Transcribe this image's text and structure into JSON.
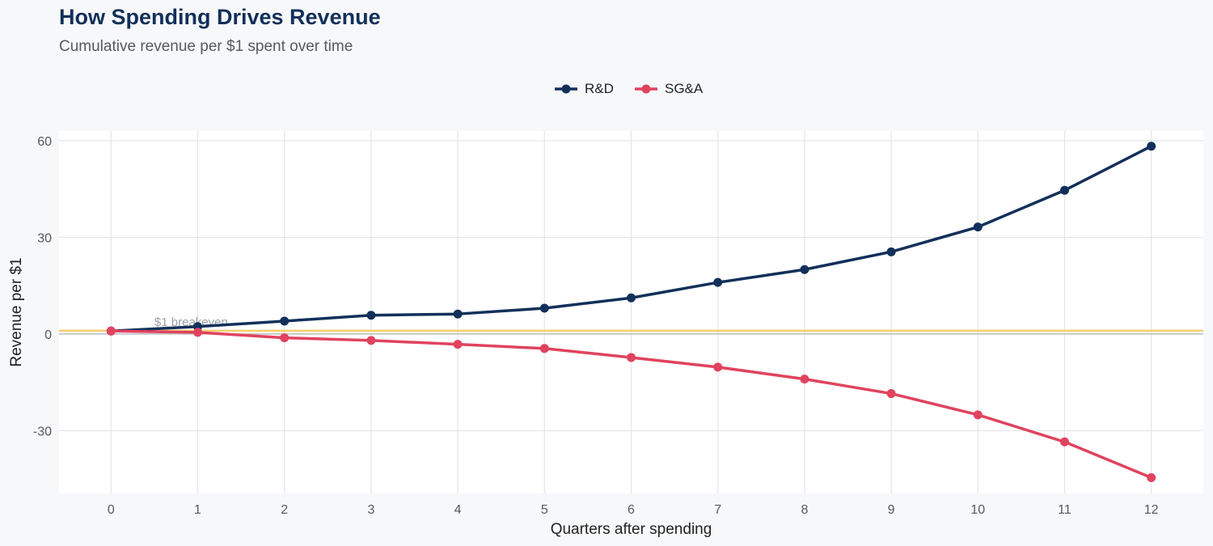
{
  "chart_data": {
    "type": "line",
    "title": "How Spending Drives Revenue",
    "subtitle": "Cumulative revenue per $1 spent over time",
    "xlabel": "Quarters after spending",
    "ylabel": "Revenue per $1",
    "x": [
      0,
      1,
      2,
      3,
      4,
      5,
      6,
      7,
      8,
      9,
      10,
      11,
      12
    ],
    "xticks": [
      "0",
      "1",
      "2",
      "3",
      "4",
      "5",
      "6",
      "7",
      "8",
      "9",
      "10",
      "11",
      "12"
    ],
    "yticks": [
      -30,
      0,
      30,
      60
    ],
    "ytick_labels": [
      "-30",
      "0",
      "30",
      "60"
    ],
    "xlim": [
      -0.6,
      12.6
    ],
    "ylim": [
      -49.5,
      63
    ],
    "grid": true,
    "legend_position": "top-center",
    "series": [
      {
        "name": "R&D",
        "color": "#12305a",
        "values": [
          0.9,
          2.3,
          4.0,
          5.8,
          6.2,
          8.0,
          11.2,
          16.0,
          20.0,
          25.5,
          33.2,
          44.6,
          58.3
        ]
      },
      {
        "name": "SG&A",
        "color": "#e0435e",
        "values": [
          0.9,
          0.5,
          -1.2,
          -2.0,
          -3.2,
          -4.5,
          -7.3,
          -10.3,
          -14.0,
          -18.5,
          -25.1,
          -33.5,
          -44.6
        ]
      }
    ],
    "reference_line": {
      "value": 1,
      "label": "$1 breakeven",
      "color": "#f6cf6e"
    },
    "zero_line_color": "#b9bdc2"
  }
}
